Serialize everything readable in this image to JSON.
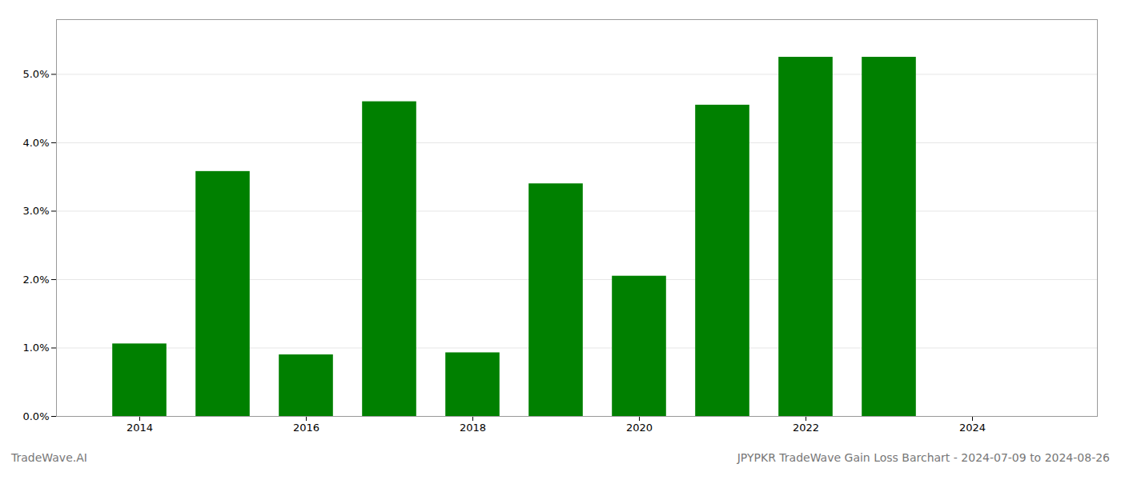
{
  "chart_data": {
    "type": "bar",
    "title": "JPYPKR TradeWave Gain Loss Barchart - 2024-07-09 to 2024-08-26",
    "annotations": [
      "TradeWave.AI"
    ],
    "x": [
      2014,
      2015,
      2016,
      2017,
      2018,
      2019,
      2020,
      2021,
      2022,
      2023
    ],
    "values": [
      0.0106,
      0.0358,
      0.009,
      0.046,
      0.0093,
      0.034,
      0.0205,
      0.0455,
      0.0525,
      0.0525
    ],
    "color": "#008000",
    "xlim": [
      2013.0,
      2025.5
    ],
    "xticks": [
      2014,
      2016,
      2018,
      2020,
      2022,
      2024
    ],
    "ylim": [
      0,
      0.058
    ],
    "yticks": [
      {
        "value": 0.0,
        "label": "0.0%"
      },
      {
        "value": 0.01,
        "label": "1.0%"
      },
      {
        "value": 0.02,
        "label": "2.0%"
      },
      {
        "value": 0.03,
        "label": "3.0%"
      },
      {
        "value": 0.04,
        "label": "4.0%"
      },
      {
        "value": 0.05,
        "label": "5.0%"
      }
    ],
    "grid": true
  }
}
